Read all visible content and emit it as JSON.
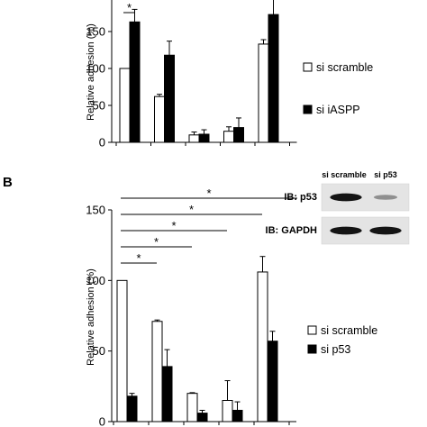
{
  "chart_data": [
    {
      "type": "bar",
      "panel": "",
      "ylabel": "Relative adhesion (%)",
      "yticks": [
        0,
        50,
        100,
        150
      ],
      "ylim": [
        0,
        200
      ],
      "categories": [
        "",
        "",
        "",
        "",
        ""
      ],
      "series": [
        {
          "name": "si scramble",
          "color": "#ffffff",
          "values": [
            100,
            62,
            10,
            15,
            133
          ],
          "errors": [
            0,
            3,
            4,
            6,
            6
          ]
        },
        {
          "name": "si iASPP",
          "color": "#000000",
          "values": [
            163,
            118,
            11,
            20,
            173
          ],
          "errors": [
            17,
            19,
            6,
            13,
            25
          ]
        }
      ],
      "significance": [
        {
          "from": 0,
          "label": "*"
        }
      ],
      "legend_position": "right"
    },
    {
      "type": "bar",
      "panel": "B",
      "ylabel": "Relative adhesion (%)",
      "yticks": [
        0,
        50,
        100,
        150
      ],
      "ylim": [
        0,
        150
      ],
      "categories": [
        "",
        "",
        "",
        "",
        ""
      ],
      "series": [
        {
          "name": "si scramble",
          "color": "#ffffff",
          "values": [
            100,
            71,
            20,
            15,
            106
          ],
          "errors": [
            0,
            1,
            0.5,
            14,
            11
          ]
        },
        {
          "name": "si p53",
          "color": "#000000",
          "values": [
            18,
            39,
            6,
            8,
            57
          ],
          "errors": [
            2,
            12,
            2,
            6,
            7
          ]
        }
      ],
      "significance": [
        {
          "from": 0,
          "to": 1,
          "label": "*"
        },
        {
          "from": 0,
          "to": 2,
          "label": "*"
        },
        {
          "from": 0,
          "to": 3,
          "label": "*"
        },
        {
          "from": 0,
          "to": 4,
          "label": "*"
        },
        {
          "from": 0,
          "to": 5,
          "label": "*"
        }
      ],
      "legend_position": "right",
      "blot": {
        "columns": [
          "si scramble",
          "si p53"
        ],
        "rows": [
          {
            "label": "IB: p53",
            "intensity": [
              0.95,
              0.3
            ]
          },
          {
            "label": "IB: GAPDH",
            "intensity": [
              0.95,
              0.95
            ]
          }
        ]
      }
    }
  ]
}
